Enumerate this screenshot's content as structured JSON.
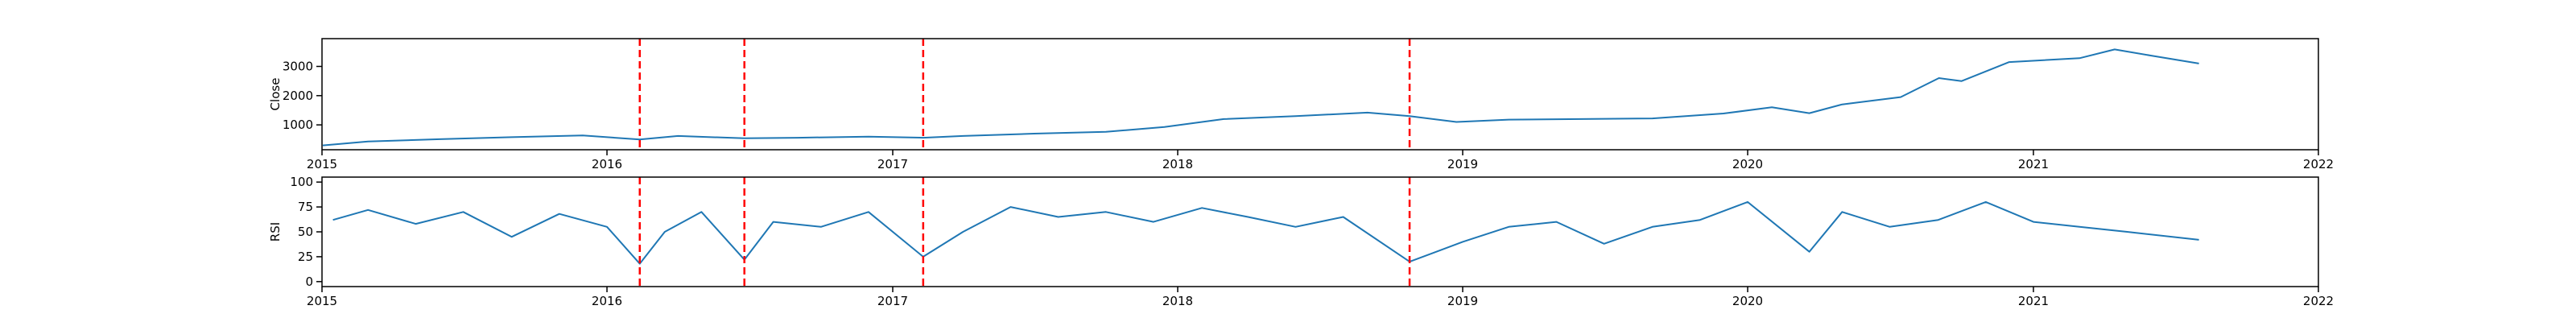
{
  "chart_data": [
    {
      "type": "line",
      "ylabel": "Close",
      "xlim": [
        "2015-01-01",
        "2022-01-01"
      ],
      "ylim": [
        150,
        3950
      ],
      "xticks": [
        "2015",
        "2016",
        "2017",
        "2018",
        "2019",
        "2020",
        "2021",
        "2022"
      ],
      "yticks": [
        1000,
        2000,
        3000
      ],
      "grid": false,
      "series": [
        {
          "color": "#1f77b4",
          "x": [
            "2015-01-02",
            "2015-03-01",
            "2015-06-01",
            "2015-09-01",
            "2015-12-01",
            "2016-02-12",
            "2016-04-01",
            "2016-06-25",
            "2016-09-01",
            "2016-12-01",
            "2017-02-09",
            "2017-04-01",
            "2017-07-01",
            "2017-10-01",
            "2017-12-15",
            "2018-03-01",
            "2018-06-01",
            "2018-09-01",
            "2018-10-25",
            "2018-12-24",
            "2019-03-01",
            "2019-06-01",
            "2019-09-01",
            "2019-12-01",
            "2020-02-01",
            "2020-03-20",
            "2020-05-01",
            "2020-07-15",
            "2020-09-02",
            "2020-10-01",
            "2020-12-01",
            "2021-03-01",
            "2021-04-15",
            "2021-06-01",
            "2021-08-01"
          ],
          "y": [
            300,
            430,
            510,
            580,
            640,
            500,
            620,
            540,
            560,
            600,
            560,
            620,
            700,
            760,
            930,
            1200,
            1300,
            1420,
            1300,
            1100,
            1180,
            1200,
            1220,
            1390,
            1600,
            1400,
            1700,
            1950,
            2600,
            2500,
            3150,
            3280,
            3580,
            3370,
            3100
          ]
        }
      ],
      "markers": {
        "style": "dashed",
        "color": "#ff0000",
        "x": [
          "2016-02-12",
          "2016-06-25",
          "2017-02-09",
          "2018-10-25"
        ]
      }
    },
    {
      "type": "line",
      "ylabel": "RSI",
      "xlim": [
        "2015-01-01",
        "2022-01-01"
      ],
      "ylim": [
        -5,
        105
      ],
      "xticks": [
        "2015",
        "2016",
        "2017",
        "2018",
        "2019",
        "2020",
        "2021",
        "2022"
      ],
      "yticks": [
        0,
        25,
        50,
        75,
        100
      ],
      "grid": false,
      "series": [
        {
          "color": "#1f77b4",
          "x": [
            "2015-01-15",
            "2015-03-01",
            "2015-05-01",
            "2015-07-01",
            "2015-09-01",
            "2015-11-01",
            "2016-01-01",
            "2016-02-12",
            "2016-03-15",
            "2016-05-01",
            "2016-06-25",
            "2016-08-01",
            "2016-10-01",
            "2016-12-01",
            "2017-02-09",
            "2017-04-01",
            "2017-06-01",
            "2017-08-01",
            "2017-10-01",
            "2017-12-01",
            "2018-02-01",
            "2018-04-01",
            "2018-06-01",
            "2018-08-01",
            "2018-10-25",
            "2019-01-01",
            "2019-03-01",
            "2019-05-01",
            "2019-07-01",
            "2019-09-01",
            "2019-11-01",
            "2020-01-01",
            "2020-03-20",
            "2020-05-01",
            "2020-07-01",
            "2020-09-01",
            "2020-11-01",
            "2021-01-01",
            "2021-03-01",
            "2021-05-01",
            "2021-08-01"
          ],
          "y": [
            62,
            72,
            58,
            70,
            45,
            68,
            55,
            18,
            50,
            70,
            22,
            60,
            55,
            70,
            25,
            50,
            75,
            65,
            70,
            60,
            74,
            65,
            55,
            65,
            20,
            40,
            55,
            60,
            38,
            55,
            62,
            80,
            30,
            70,
            55,
            62,
            80,
            60,
            55,
            50,
            42
          ]
        }
      ],
      "markers": {
        "style": "dashed",
        "color": "#ff0000",
        "x": [
          "2016-02-12",
          "2016-06-25",
          "2017-02-09",
          "2018-10-25"
        ]
      }
    }
  ]
}
